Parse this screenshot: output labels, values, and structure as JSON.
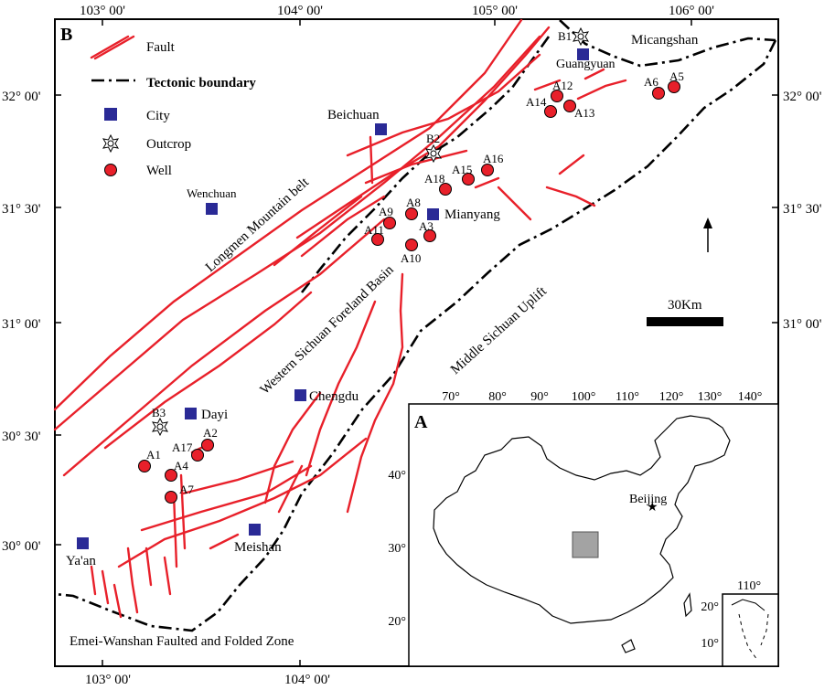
{
  "panel_labels": {
    "main": "B",
    "inset": "A"
  },
  "lon_ticks_top": [
    "103° 00'",
    "104° 00'",
    "105° 00'",
    "106° 00'"
  ],
  "lon_ticks_bottom": [
    "103° 00'",
    "104° 00'"
  ],
  "lat_ticks_left": [
    "32° 00'",
    "31° 30'",
    "31° 00'",
    "30° 30'",
    "30° 00'"
  ],
  "lat_ticks_right": [
    "32° 00'",
    "31° 30'",
    "31° 00'"
  ],
  "legend": {
    "fault": "Fault",
    "tectonic_boundary": "Tectonic boundary",
    "city": "City",
    "outcrop": "Outcrop",
    "well": "Well"
  },
  "cities": {
    "guangyuan": "Guangyuan",
    "beichuan": "Beichuan",
    "wenchuan": "Wenchuan",
    "mianyang": "Mianyang",
    "chengdu": "Chengdu",
    "dayi": "Dayi",
    "meishan": "Meishan",
    "yaan": "Ya'an"
  },
  "outcrops": {
    "b1": "B1",
    "b2": "B2",
    "b3": "B3"
  },
  "wells": {
    "a1": "A1",
    "a2": "A2",
    "a3": "A3",
    "a4": "A4",
    "a5": "A5",
    "a6": "A6",
    "a7": "A7",
    "a8": "A8",
    "a9": "A9",
    "a10": "A10",
    "a11": "A11",
    "a12": "A12",
    "a13": "A13",
    "a14": "A14",
    "a15": "A15",
    "a16": "A16",
    "a17": "A17",
    "a18": "A18"
  },
  "regions": {
    "micangshan": "Micangshan",
    "longmen": "Longmen Mountain belt",
    "foreland": "Western Sichuan Foreland Basin",
    "uplift": "Middle Sichuan Uplift",
    "emei": "Emei-Wanshan Faulted and Folded Zone"
  },
  "scale_label": "30Km",
  "inset": {
    "lon_ticks": [
      "70°",
      "80°",
      "90°",
      "100°",
      "110°",
      "120°",
      "130°",
      "140°"
    ],
    "lat_ticks": [
      "40°",
      "30°",
      "20°"
    ],
    "capital": "Beijing",
    "small_lon": "110°",
    "small_lat": [
      "20°",
      "10°"
    ]
  }
}
